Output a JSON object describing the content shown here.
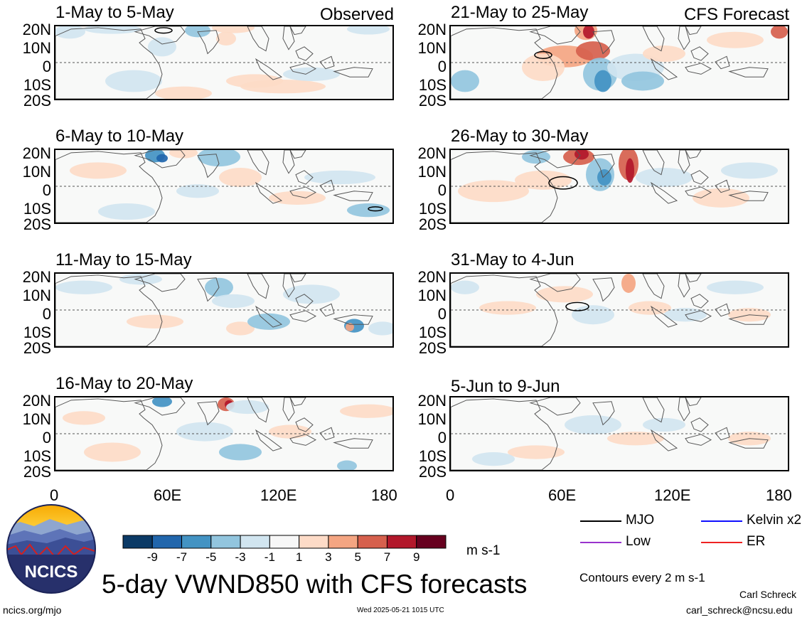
{
  "chart_data": {
    "type": "heatmap",
    "title": "5-day VWND850 with CFS forecasts",
    "variable_units": "m s-1",
    "x_range": [
      0,
      180
    ],
    "x_ticks": [
      "0",
      "60E",
      "120E",
      "180"
    ],
    "y_range": [
      -20,
      20
    ],
    "y_ticks": [
      "20N",
      "10N",
      "0",
      "10S",
      "20S"
    ],
    "colorbar": {
      "levels": [
        "-9",
        "-7",
        "-5",
        "-3",
        "-1",
        "1",
        "3",
        "5",
        "7",
        "9"
      ],
      "colors": [
        "#0b3a66",
        "#2166ac",
        "#4393c3",
        "#92c5de",
        "#d1e5f0",
        "#f7f7f7",
        "#fddbc7",
        "#f4a582",
        "#d6604d",
        "#b2182b",
        "#67001f"
      ]
    },
    "legend": [
      {
        "label": "MJO",
        "color": "#000000"
      },
      {
        "label": "Kelvin x2",
        "color": "#1010ff"
      },
      {
        "label": "Low",
        "color": "#9933cc"
      },
      {
        "label": "ER",
        "color": "#ee2222"
      }
    ],
    "contour_note": "Contours every 2 m s-1",
    "panels": [
      {
        "period": "1-May to 5-May",
        "tag": "Observed"
      },
      {
        "period": "6-May to 10-May",
        "tag": ""
      },
      {
        "period": "11-May to 15-May",
        "tag": ""
      },
      {
        "period": "16-May to 20-May",
        "tag": ""
      },
      {
        "period": "21-May to 25-May",
        "tag": "CFS Forecast"
      },
      {
        "period": "26-May to 30-May",
        "tag": ""
      },
      {
        "period": "31-May to 4-Jun",
        "tag": ""
      },
      {
        "period": "5-Jun to 9-Jun",
        "tag": ""
      }
    ]
  },
  "logo_text": "NCICS",
  "footer": {
    "site": "ncics.org/mjo",
    "timestamp": "Wed 2025-05-21 1015 UTC",
    "author": "Carl Schreck",
    "email": "carl_schreck@ncsu.edu"
  }
}
